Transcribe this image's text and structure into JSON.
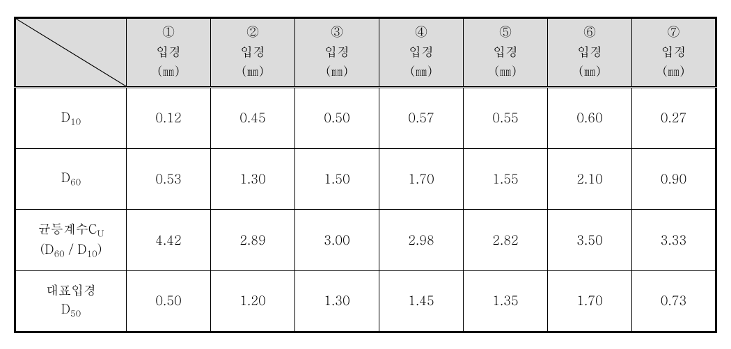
{
  "table": {
    "columns": [
      "①",
      "②",
      "③",
      "④",
      "⑤",
      "⑥",
      "⑦"
    ],
    "header_label_line1": "입경",
    "header_label_line2": "(㎜)",
    "rows": [
      {
        "label_html": "D<sub>10</sub>",
        "values": [
          "0.12",
          "0.45",
          "0.50",
          "0.57",
          "0.55",
          "0.60",
          "0.27"
        ]
      },
      {
        "label_html": "D<sub>60</sub>",
        "values": [
          "0.53",
          "1.30",
          "1.50",
          "1.70",
          "1.55",
          "2.10",
          "0.90"
        ]
      },
      {
        "label_html": "균등계수C<sub>U</sub><br>(D<sub>60</sub> / D<sub>10</sub>)",
        "values": [
          "4.42",
          "2.89",
          "3.00",
          "2.98",
          "2.82",
          "3.50",
          "3.33"
        ]
      },
      {
        "label_html": "대표입경<br>D<sub>50</sub>",
        "values": [
          "0.50",
          "1.20",
          "1.30",
          "1.45",
          "1.35",
          "1.70",
          "0.73"
        ]
      }
    ],
    "colors": {
      "header_bg": "#dcdcdc",
      "border": "#000000",
      "background": "#ffffff",
      "text": "#000000"
    }
  }
}
